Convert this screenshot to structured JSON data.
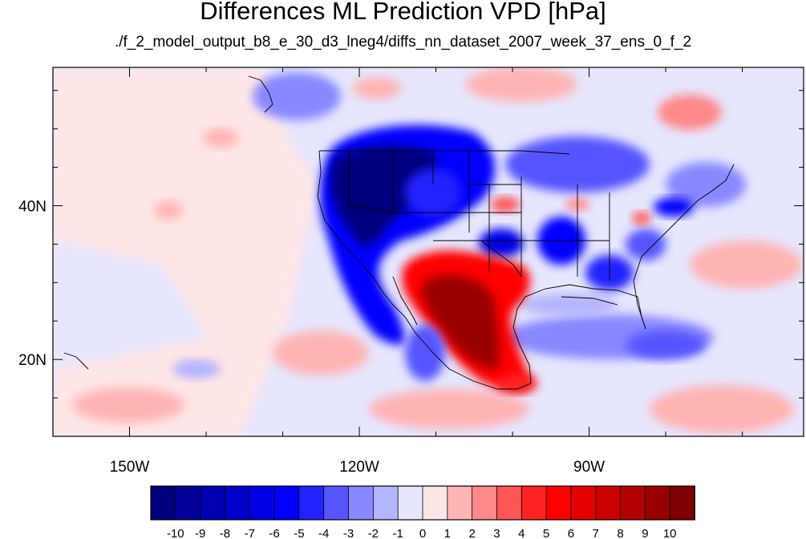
{
  "title": "Differences ML Prediction VPD [hPa]",
  "subtitle": "./f_2_model_output_b8_e_30_d3_lneg4/diffs_nn_dataset_2007_week_37_ens_0_f_2",
  "axes": {
    "lat_labels": [
      "40N",
      "20N"
    ],
    "lon_labels": [
      "150W",
      "120W",
      "90W"
    ]
  },
  "map": {
    "lon_range": [
      -160,
      -62
    ],
    "lat_range": [
      10,
      58
    ],
    "lat_ticks": [
      40,
      20
    ],
    "lon_ticks": [
      -150,
      -120,
      -90
    ]
  },
  "colorbar": {
    "tick_labels": [
      "-10",
      "-9",
      "-8",
      "-7",
      "-6",
      "-5",
      "-4",
      "-3",
      "-2",
      "-1",
      "0",
      "1",
      "2",
      "3",
      "4",
      "5",
      "6",
      "7",
      "8",
      "9",
      "10"
    ],
    "colors": [
      "#00007f",
      "#000099",
      "#0000b3",
      "#0000cc",
      "#0000e6",
      "#0000ff",
      "#2222ff",
      "#5555ff",
      "#8888ff",
      "#b4b4ff",
      "#e6e6ff",
      "#ffe6e6",
      "#ffb4b4",
      "#ff8888",
      "#ff5555",
      "#ff2222",
      "#ff0000",
      "#e60000",
      "#cc0000",
      "#b30000",
      "#990000",
      "#7f0000"
    ]
  }
}
